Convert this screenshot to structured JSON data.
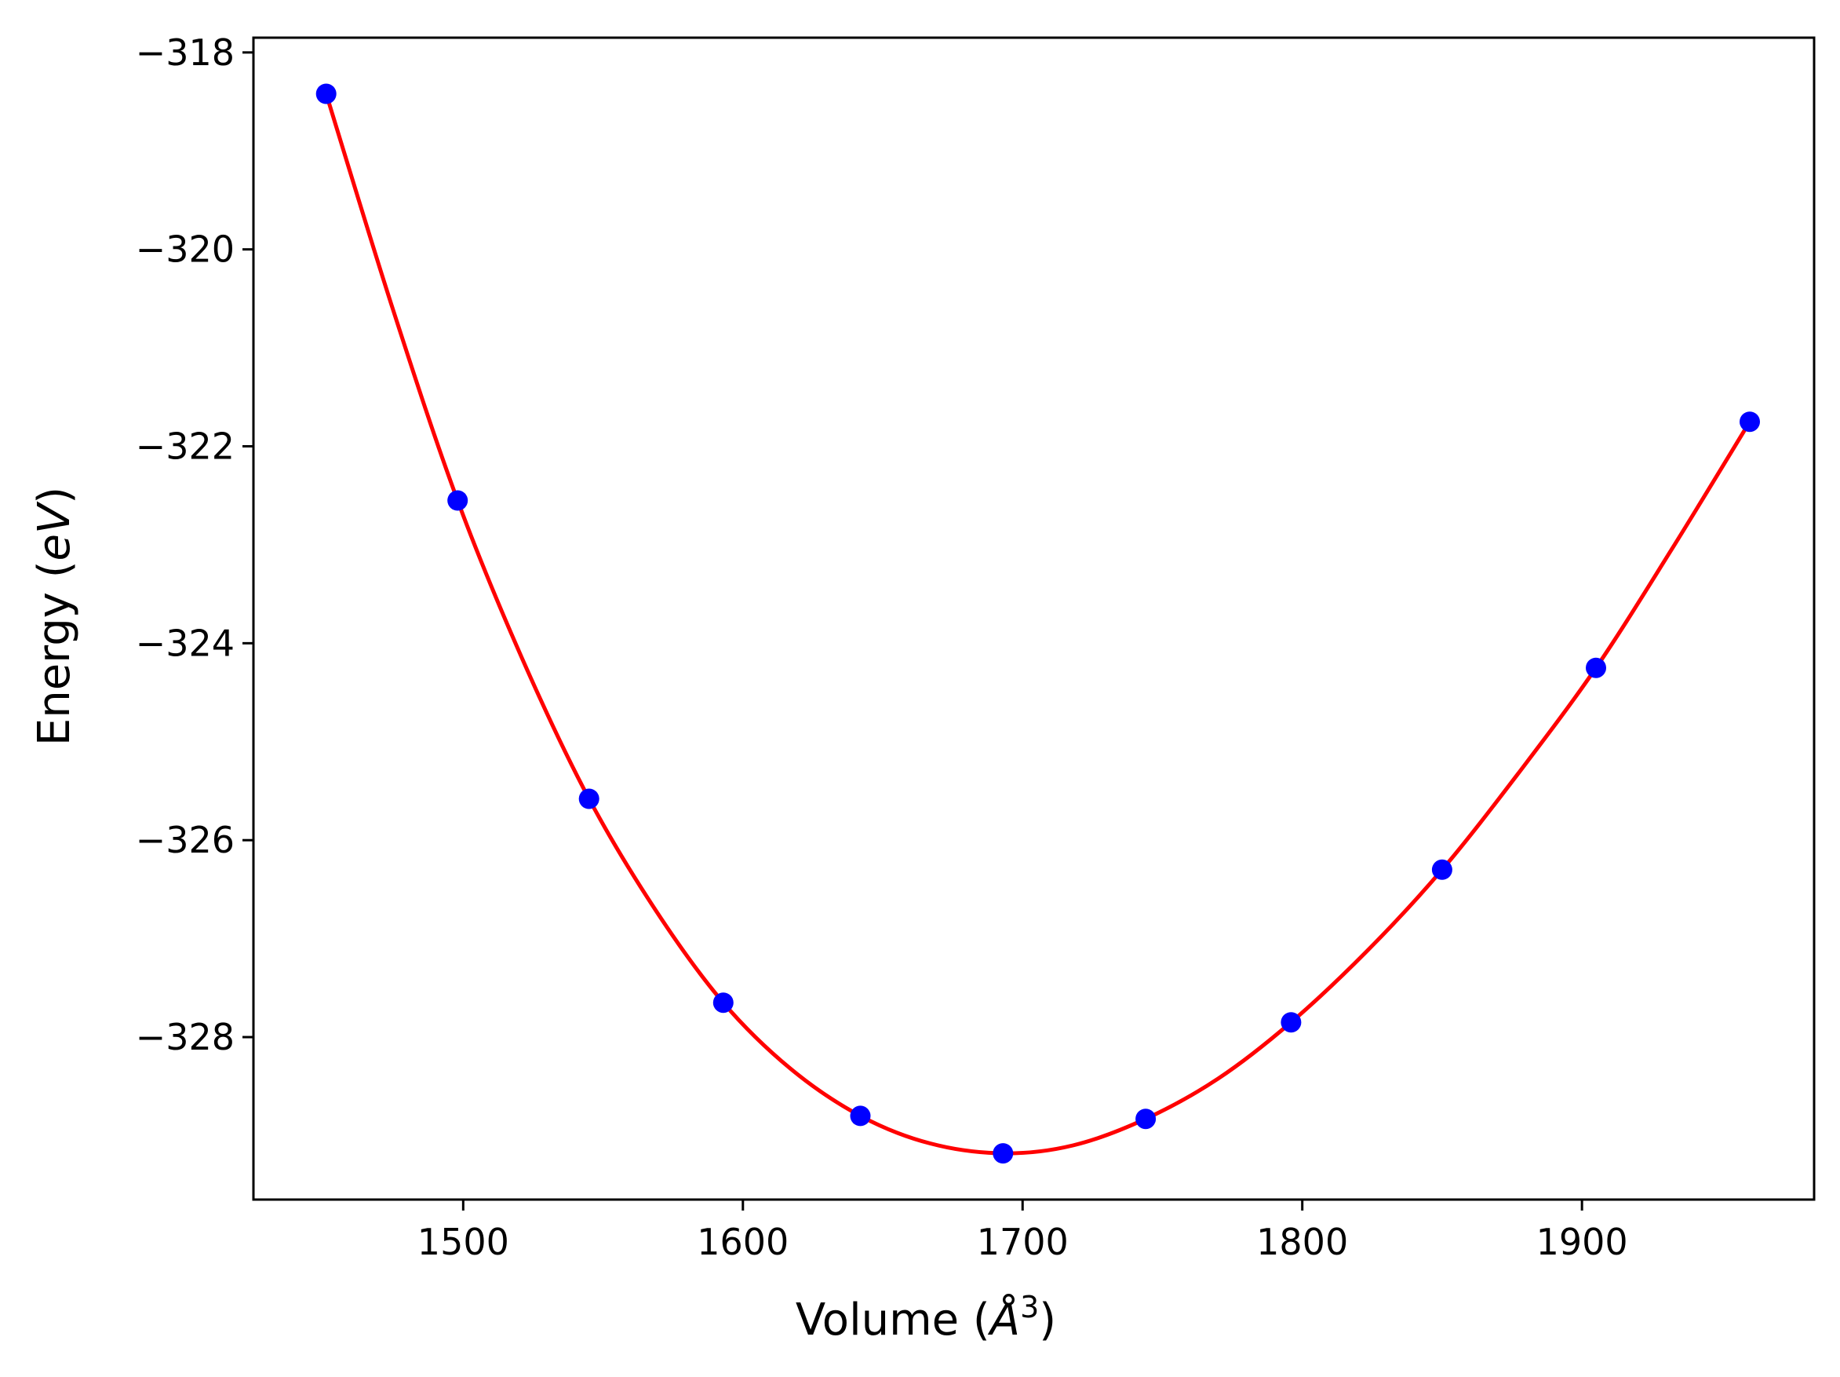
{
  "chart_data": {
    "type": "line",
    "title": "",
    "xlabel": {
      "prefix": "Volume (",
      "symbol": "Å",
      "sup": "3",
      "suffix": ")"
    },
    "ylabel": {
      "prefix": "Energy (",
      "symbol": "eV",
      "suffix": ")"
    },
    "xlim": [
      1425,
      1983
    ],
    "ylim": [
      -329.65,
      -317.85
    ],
    "xticks": [
      1500,
      1600,
      1700,
      1800,
      1900
    ],
    "xtick_labels": [
      "1500",
      "1600",
      "1700",
      "1800",
      "1900"
    ],
    "yticks": [
      -318,
      -320,
      -322,
      -324,
      -326,
      -328
    ],
    "ytick_labels": [
      "−318",
      "−320",
      "−322",
      "−324",
      "−326",
      "−328"
    ],
    "grid": false,
    "legend": "none",
    "colors": {
      "fit": "#ff0000",
      "points": "#0000ff"
    },
    "series": [
      {
        "kind": "scatter",
        "x": [
          1451,
          1498,
          1545,
          1593,
          1642,
          1693,
          1744,
          1796,
          1850,
          1905,
          1960
        ],
        "y": [
          -318.42,
          -322.55,
          -325.58,
          -327.65,
          -328.8,
          -329.18,
          -328.83,
          -327.85,
          -326.3,
          -324.25,
          -321.75
        ]
      },
      {
        "kind": "fit",
        "x": [
          1451,
          1475,
          1498,
          1521,
          1545,
          1569,
          1593,
          1617,
          1642,
          1667,
          1693,
          1718,
          1744,
          1770,
          1796,
          1823,
          1850,
          1877,
          1905,
          1932,
          1960
        ],
        "y": [
          -318.42,
          -320.62,
          -322.55,
          -324.15,
          -325.58,
          -326.72,
          -327.65,
          -328.32,
          -328.8,
          -329.08,
          -329.18,
          -329.1,
          -328.83,
          -328.42,
          -327.85,
          -327.13,
          -326.3,
          -325.33,
          -324.25,
          -323.05,
          -321.75
        ]
      }
    ]
  }
}
